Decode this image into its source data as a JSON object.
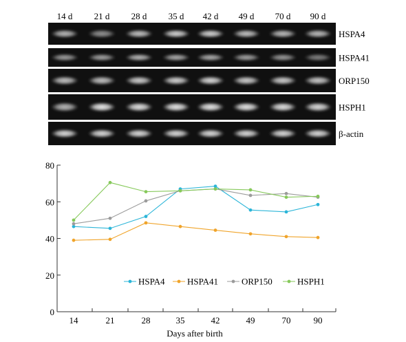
{
  "gel": {
    "lanes": [
      "14 d",
      "21 d",
      "28 d",
      "35 d",
      "42 d",
      "49 d",
      "70 d",
      "90 d"
    ],
    "rows": [
      {
        "label": "HSPA4",
        "intensity": [
          0.7,
          0.55,
          0.75,
          0.82,
          0.82,
          0.75,
          0.72,
          0.72
        ]
      },
      {
        "label": "HSPA41",
        "intensity": [
          0.6,
          0.62,
          0.7,
          0.66,
          0.66,
          0.62,
          0.58,
          0.48
        ]
      },
      {
        "label": "ORP150",
        "intensity": [
          0.75,
          0.75,
          0.8,
          0.82,
          0.85,
          0.8,
          0.8,
          0.78
        ]
      },
      {
        "label": "HSPH1",
        "intensity": [
          0.7,
          0.92,
          0.88,
          0.9,
          0.9,
          0.9,
          0.88,
          0.86
        ]
      },
      {
        "label": "β-actin",
        "intensity": [
          0.85,
          0.85,
          0.85,
          0.85,
          0.85,
          0.85,
          0.85,
          0.85
        ]
      }
    ]
  },
  "chart_data": {
    "type": "line",
    "categories": [
      "14",
      "21",
      "28",
      "35",
      "42",
      "49",
      "70",
      "90"
    ],
    "xlabel": "Days after birth",
    "ylabel": "",
    "ylim": [
      0,
      80
    ],
    "yticks": [
      0,
      20,
      40,
      60,
      80
    ],
    "grid": false,
    "legend": "bottom-center",
    "series": [
      {
        "name": "HSPA4",
        "color": "#2bb5d8",
        "values": [
          46.5,
          45.5,
          52,
          67,
          68.5,
          55.5,
          54.5,
          58.5
        ]
      },
      {
        "name": "HSPA41",
        "color": "#f0a42a",
        "values": [
          39,
          39.5,
          48.5,
          46.5,
          44.5,
          42.5,
          41,
          40.5
        ]
      },
      {
        "name": "ORP150",
        "color": "#9b9b9b",
        "values": [
          48,
          51,
          60.5,
          66,
          67,
          63.5,
          64.5,
          62.5
        ]
      },
      {
        "name": "HSPH1",
        "color": "#86c95a",
        "values": [
          50,
          70.5,
          65.5,
          66,
          67,
          66.5,
          62.5,
          63
        ]
      }
    ]
  }
}
